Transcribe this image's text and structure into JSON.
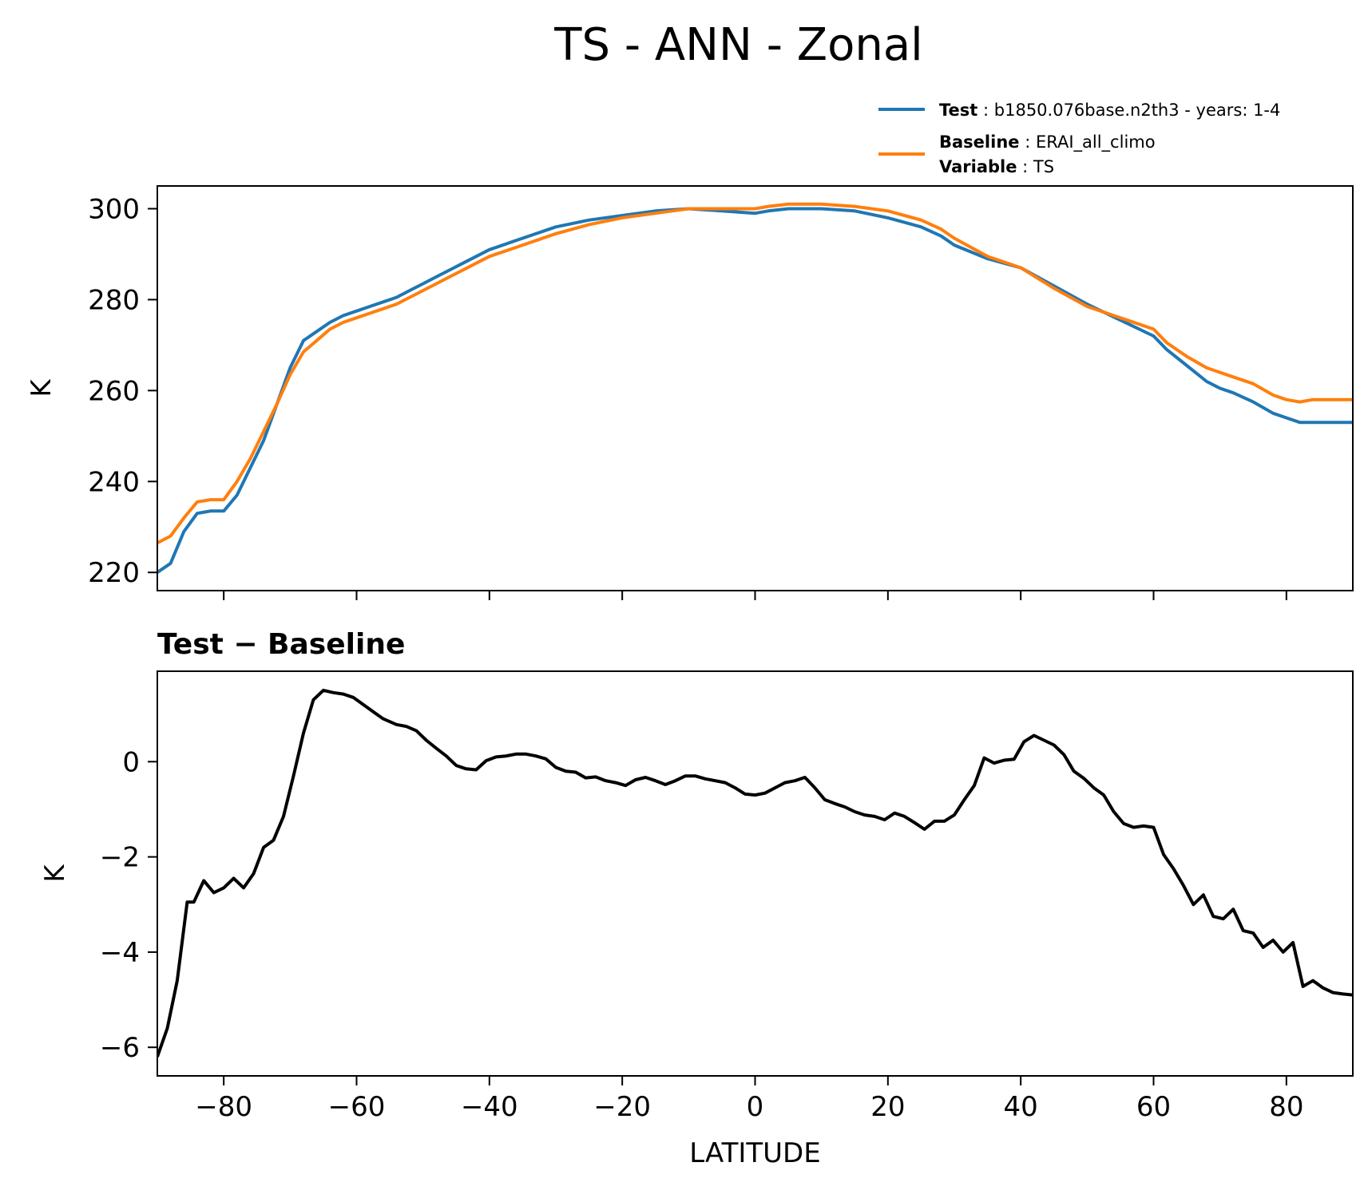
{
  "figure": {
    "title": "TS - ANN - Zonal"
  },
  "legend": {
    "test": {
      "label": "Test",
      "text": "b1850.076base.n2th3 - years: 1-4"
    },
    "baseline": {
      "label": "Baseline",
      "text": "ERAI_all_climo"
    },
    "variable": {
      "label": "Variable",
      "text": "TS"
    }
  },
  "colors": {
    "test": "#1f77b4",
    "baseline": "#ff7f0e",
    "difference": "#000000"
  },
  "chart_data": [
    {
      "type": "line",
      "ylabel": "K",
      "xlim": [
        -90,
        90
      ],
      "ylim": [
        216,
        305
      ],
      "xticks": [
        -80,
        -60,
        -40,
        -20,
        0,
        20,
        40,
        60,
        80
      ],
      "yticks": [
        220,
        240,
        260,
        280,
        300
      ],
      "ytick_labels": [
        "220",
        "240",
        "260",
        "280",
        "300"
      ],
      "grid": false,
      "legend_position": "above-right",
      "series": [
        {
          "name": "Test",
          "x": [
            -90,
            -88,
            -86,
            -84,
            -82,
            -80,
            -78,
            -76,
            -74,
            -72,
            -70,
            -68,
            -66,
            -64,
            -62,
            -60,
            -58,
            -56,
            -54,
            -52,
            -50,
            -48,
            -46,
            -44,
            -42,
            -40,
            -35,
            -30,
            -25,
            -20,
            -15,
            -10,
            -5,
            0,
            2,
            5,
            10,
            15,
            20,
            25,
            28,
            30,
            35,
            40,
            45,
            50,
            55,
            60,
            62,
            65,
            68,
            70,
            72,
            75,
            78,
            80,
            82,
            85,
            88,
            90
          ],
          "y": [
            220,
            222,
            229,
            233,
            233.5,
            233.5,
            237,
            243,
            249,
            257,
            265,
            271,
            273,
            275,
            276.5,
            277.5,
            278.5,
            279.5,
            280.5,
            282,
            283.5,
            285,
            286.5,
            288,
            289.5,
            291,
            293.5,
            296,
            297.5,
            298.5,
            299.5,
            300,
            299.5,
            299,
            299.5,
            300,
            300,
            299.5,
            298,
            296,
            294,
            292,
            289,
            287,
            283,
            279,
            275.5,
            272,
            269,
            265.5,
            262,
            260.5,
            259.5,
            257.5,
            255,
            254,
            253,
            253,
            253,
            253
          ]
        },
        {
          "name": "Baseline",
          "x": [
            -90,
            -88,
            -86,
            -84,
            -82,
            -80,
            -78,
            -76,
            -74,
            -72,
            -70,
            -68,
            -66,
            -64,
            -62,
            -60,
            -58,
            -56,
            -54,
            -52,
            -50,
            -48,
            -46,
            -44,
            -42,
            -40,
            -35,
            -30,
            -25,
            -20,
            -15,
            -10,
            -5,
            0,
            2,
            5,
            10,
            15,
            20,
            25,
            28,
            30,
            35,
            40,
            45,
            50,
            55,
            60,
            62,
            65,
            68,
            70,
            72,
            75,
            78,
            80,
            82,
            84,
            86,
            90
          ],
          "y": [
            226.5,
            228,
            232,
            235.5,
            236,
            236,
            240,
            245,
            251,
            257,
            263.5,
            268.5,
            271,
            273.5,
            275,
            276,
            277,
            278,
            279,
            280.5,
            282,
            283.5,
            285,
            286.5,
            288,
            289.5,
            292,
            294.5,
            296.5,
            298,
            299,
            300,
            300,
            300,
            300.5,
            301,
            301,
            300.5,
            299.5,
            297.5,
            295.5,
            293.5,
            289.5,
            287,
            282.5,
            278.5,
            276,
            273.5,
            270.5,
            267.5,
            265,
            264,
            263,
            261.5,
            259,
            258,
            257.5,
            258,
            258,
            258
          ]
        }
      ]
    },
    {
      "type": "line",
      "title": "Test − Baseline",
      "xlabel": "LATITUDE",
      "ylabel": "K",
      "xlim": [
        -90,
        90
      ],
      "ylim": [
        -6.6,
        1.9
      ],
      "xticks": [
        -80,
        -60,
        -40,
        -20,
        0,
        20,
        40,
        60,
        80
      ],
      "xtick_labels": [
        "−80",
        "−60",
        "−40",
        "−20",
        "0",
        "20",
        "40",
        "60",
        "80"
      ],
      "yticks": [
        -6,
        -4,
        -2,
        0
      ],
      "ytick_labels": [
        "−6",
        "−4",
        "−2",
        "0"
      ],
      "grid": false,
      "series": [
        {
          "x": [
            -90,
            -88.5,
            -87,
            -85.5,
            -84.5,
            -83,
            -81.5,
            -80,
            -78.5,
            -77,
            -75.5,
            -74,
            -72.5,
            -71,
            -69.5,
            -68,
            -66.5,
            -65,
            -63.5,
            -62,
            -60.5,
            -59,
            -57.5,
            -56,
            -54,
            -52.5,
            -51,
            -49.5,
            -48,
            -46.5,
            -45,
            -43.5,
            -42,
            -40.5,
            -39,
            -37.5,
            -36,
            -34.5,
            -33,
            -31.5,
            -30,
            -28.5,
            -27,
            -25.5,
            -24,
            -22.5,
            -21,
            -19.5,
            -18,
            -16.5,
            -15,
            -13.5,
            -12,
            -10.5,
            -9,
            -7.5,
            -6,
            -4.5,
            -3,
            -1.5,
            0,
            1.5,
            3,
            4.5,
            6,
            7.5,
            9,
            10.5,
            12,
            13.5,
            15,
            16.5,
            18,
            19.5,
            21,
            22.5,
            24,
            25.5,
            27,
            28.5,
            30,
            31.5,
            33,
            34.5,
            36,
            37.5,
            39,
            40.5,
            42,
            43.5,
            45,
            46.5,
            48,
            49.5,
            51,
            52.5,
            54,
            55.5,
            57,
            58.5,
            60,
            61.5,
            63,
            64.5,
            66,
            67.5,
            69,
            70.5,
            72,
            73.5,
            75,
            76.5,
            78,
            79.5,
            81,
            82.5,
            84,
            85.5,
            87,
            88.5,
            90
          ],
          "y": [
            -6.2,
            -5.6,
            -4.6,
            -2.95,
            -2.95,
            -2.5,
            -2.75,
            -2.65,
            -2.45,
            -2.65,
            -2.35,
            -1.8,
            -1.65,
            -1.15,
            -0.3,
            0.6,
            1.3,
            1.5,
            1.45,
            1.42,
            1.35,
            1.2,
            1.05,
            0.9,
            0.78,
            0.74,
            0.65,
            0.45,
            0.28,
            0.12,
            -0.08,
            -0.15,
            -0.17,
            0.02,
            0.1,
            0.12,
            0.16,
            0.16,
            0.12,
            0.06,
            -0.12,
            -0.2,
            -0.22,
            -0.34,
            -0.32,
            -0.4,
            -0.44,
            -0.5,
            -0.38,
            -0.33,
            -0.4,
            -0.48,
            -0.4,
            -0.3,
            -0.3,
            -0.36,
            -0.4,
            -0.44,
            -0.55,
            -0.68,
            -0.7,
            -0.66,
            -0.55,
            -0.44,
            -0.4,
            -0.33,
            -0.55,
            -0.8,
            -0.88,
            -0.95,
            -1.05,
            -1.12,
            -1.15,
            -1.22,
            -1.08,
            -1.15,
            -1.28,
            -1.42,
            -1.25,
            -1.25,
            -1.12,
            -0.8,
            -0.5,
            0.08,
            -0.03,
            0.03,
            0.05,
            0.42,
            0.55,
            0.45,
            0.35,
            0.15,
            -0.2,
            -0.35,
            -0.55,
            -0.7,
            -1.05,
            -1.3,
            -1.38,
            -1.35,
            -1.38,
            -1.95,
            -2.25,
            -2.6,
            -3.0,
            -2.8,
            -3.25,
            -3.3,
            -3.1,
            -3.55,
            -3.6,
            -3.9,
            -3.75,
            -4.0,
            -3.8,
            -4.72,
            -4.6,
            -4.75,
            -4.85,
            -4.88,
            -4.9
          ]
        }
      ]
    }
  ]
}
